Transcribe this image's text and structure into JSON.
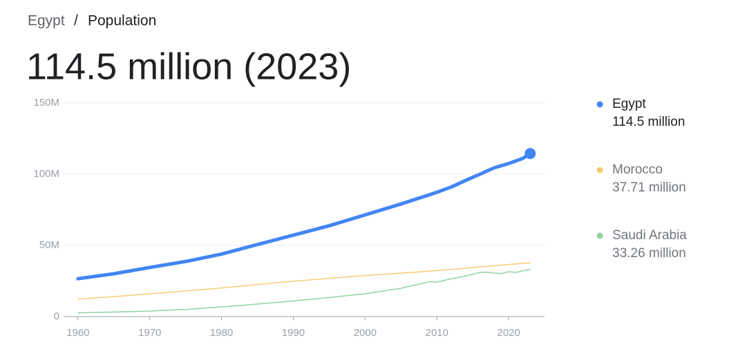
{
  "chart_data": {
    "type": "line",
    "breadcrumb": [
      "Egypt",
      "/",
      "Population"
    ],
    "title": "114.5 million (2023)",
    "x": [
      1960,
      1965,
      1970,
      1975,
      1980,
      1985,
      1990,
      1995,
      2000,
      2005,
      2009,
      2010,
      2012,
      2014,
      2016,
      2017,
      2018,
      2019,
      2020,
      2021,
      2022,
      2023
    ],
    "series": [
      {
        "name": "Egypt",
        "color": "#4285f4",
        "value_label": "114.5 million",
        "values": [
          26.6,
          30.1,
          34.5,
          38.7,
          43.9,
          50.6,
          57.2,
          63.8,
          71.4,
          79.1,
          85.6,
          87.3,
          91.0,
          95.6,
          100.0,
          102.3,
          104.5,
          106.0,
          107.5,
          109.3,
          111.2,
          114.5
        ]
      },
      {
        "name": "Morocco",
        "color": "#fbcb74",
        "value_label": "37.71 million",
        "values": [
          12.3,
          14.0,
          16.0,
          18.0,
          20.1,
          22.5,
          24.8,
          26.9,
          28.8,
          30.5,
          31.9,
          32.3,
          33.1,
          34.0,
          34.9,
          35.3,
          35.7,
          36.1,
          36.6,
          37.0,
          37.4,
          37.71
        ]
      },
      {
        "name": "Saudi Arabia",
        "color": "#8fd3a4",
        "value_label": "33.26 million",
        "values": [
          2.6,
          3.2,
          3.9,
          5.0,
          6.8,
          8.8,
          11.0,
          13.4,
          16.0,
          19.9,
          24.5,
          24.3,
          26.5,
          28.5,
          31.0,
          31.2,
          30.5,
          30.3,
          31.5,
          31.0,
          32.2,
          33.26
        ]
      }
    ],
    "xlim": [
      1958,
      2025
    ],
    "xticks": [
      1960,
      1970,
      1980,
      1990,
      2000,
      2010,
      2020
    ],
    "ylim": [
      0,
      150
    ],
    "yticks": [
      {
        "value": 0,
        "label": "0"
      },
      {
        "value": 50,
        "label": "50M"
      },
      {
        "value": 100,
        "label": "100M"
      },
      {
        "value": 150,
        "label": "150M"
      }
    ],
    "grid": true
  }
}
